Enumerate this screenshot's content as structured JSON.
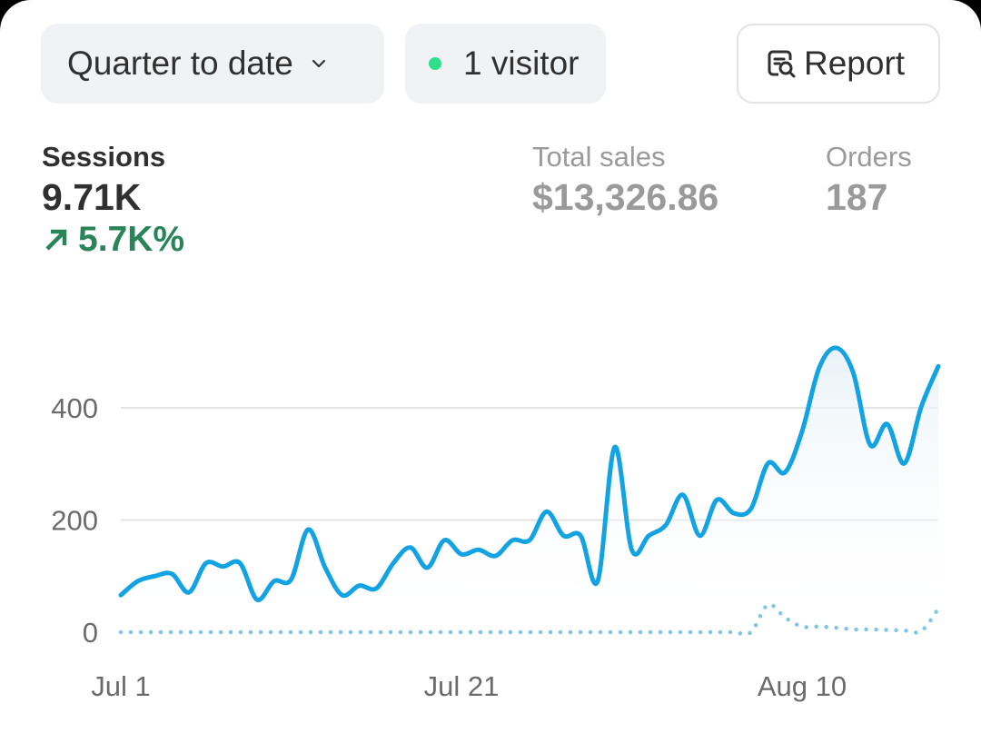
{
  "toolbar": {
    "period_label": "Quarter to date",
    "visitors_label": "1 visitor",
    "report_label": "Report",
    "live_dot_color": "#2ee08a"
  },
  "metrics": {
    "sessions": {
      "label": "Sessions",
      "value": "9.71K",
      "change": "5.7K%",
      "change_direction": "up",
      "change_color": "#29845a"
    },
    "total_sales": {
      "label": "Total sales",
      "value": "$13,326.86"
    },
    "orders": {
      "label": "Orders",
      "value": "187"
    }
  },
  "chart_data": {
    "type": "line",
    "x_start": "Jul 1",
    "x_end": "Aug 18",
    "x_tick_labels": [
      "Jul 1",
      "Jul 21",
      "Aug 10"
    ],
    "y_tick_labels": [
      "0",
      "200",
      "400"
    ],
    "ylim": [
      0,
      500
    ],
    "grid": true,
    "series": [
      {
        "style": "solid",
        "color": "#13a3e3",
        "values": [
          66,
          91,
          100,
          104,
          71,
          123,
          117,
          123,
          58,
          91,
          94,
          183,
          115,
          66,
          83,
          78,
          123,
          151,
          115,
          164,
          139,
          147,
          136,
          164,
          164,
          215,
          172,
          172,
          91,
          330,
          147,
          172,
          191,
          245,
          172,
          236,
          212,
          220,
          301,
          285,
          358,
          471,
          507,
          463,
          334,
          371,
          301,
          402,
          474
        ]
      },
      {
        "style": "dotted",
        "color": "#7fc6e6",
        "values": [
          0,
          0,
          0,
          0,
          0,
          0,
          0,
          0,
          0,
          0,
          0,
          0,
          0,
          0,
          0,
          0,
          0,
          0,
          0,
          0,
          0,
          0,
          0,
          0,
          0,
          0,
          0,
          0,
          0,
          0,
          0,
          0,
          0,
          0,
          0,
          0,
          0,
          0,
          49,
          26,
          10,
          10,
          8,
          5,
          5,
          4,
          3,
          2,
          42
        ]
      }
    ]
  }
}
